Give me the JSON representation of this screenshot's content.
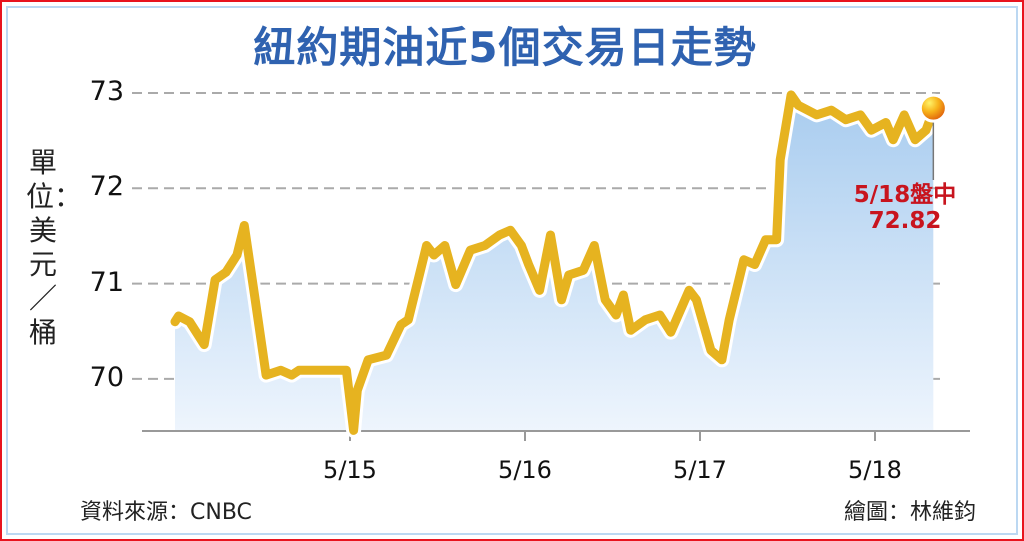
{
  "chart_data": {
    "type": "area",
    "title": "紐約期油近5個交易日走勢",
    "ylabel": "單位：美元／桶",
    "xlabel": "",
    "ylim": [
      69.4,
      73
    ],
    "yticks": [
      "73",
      "72",
      "71",
      "70"
    ],
    "ytick_values": [
      73,
      72,
      71,
      70
    ],
    "xticks": [
      "5/15",
      "5/16",
      "5/17",
      "5/18"
    ],
    "grid": true,
    "colors": {
      "line": "#e6b320",
      "fill_top": "#a8ccef",
      "fill_bottom": "#eef5fd",
      "title": "#2f62b0",
      "annotation": "#c8141e",
      "marker": "#f29a12"
    },
    "annotation": {
      "label": "5/18盤中",
      "value": "72.82"
    },
    "points": [
      [
        "5/14 00:00",
        70.6
      ],
      [
        "5/14 00:30",
        70.66
      ],
      [
        "5/14 02:00",
        70.6
      ],
      [
        "5/14 04:00",
        70.36
      ],
      [
        "5/14 05:30",
        71.04
      ],
      [
        "5/14 07:00",
        71.12
      ],
      [
        "5/14 08:30",
        71.3
      ],
      [
        "5/14 09:30",
        71.61
      ],
      [
        "5/14 11:00",
        70.83
      ],
      [
        "5/14 12:30",
        70.04
      ],
      [
        "5/14 14:30",
        70.09
      ],
      [
        "5/14 16:00",
        70.04
      ],
      [
        "5/14 17:00",
        70.09
      ],
      [
        "5/14 23:30",
        70.09
      ],
      [
        "5/15 00:30",
        69.46
      ],
      [
        "5/15 01:00",
        69.88
      ],
      [
        "5/15 02:30",
        70.2
      ],
      [
        "5/15 05:00",
        70.25
      ],
      [
        "5/15 07:00",
        70.57
      ],
      [
        "5/15 08:00",
        70.62
      ],
      [
        "5/15 10:30",
        71.4
      ],
      [
        "5/15 11:30",
        71.3
      ],
      [
        "5/15 13:00",
        71.4
      ],
      [
        "5/15 14:30",
        70.99
      ],
      [
        "5/15 16:30",
        71.35
      ],
      [
        "5/15 18:30",
        71.4
      ],
      [
        "5/15 20:30",
        71.51
      ],
      [
        "5/15 22:00",
        71.56
      ],
      [
        "5/15 23:30",
        71.4
      ],
      [
        "5/16 00:30",
        71.2
      ],
      [
        "5/16 02:00",
        70.93
      ],
      [
        "5/16 03:30",
        71.51
      ],
      [
        "5/16 05:00",
        70.83
      ],
      [
        "5/16 06:00",
        71.09
      ],
      [
        "5/16 08:00",
        71.14
      ],
      [
        "5/16 09:30",
        71.4
      ],
      [
        "5/16 11:00",
        70.83
      ],
      [
        "5/16 12:30",
        70.67
      ],
      [
        "5/16 13:30",
        70.88
      ],
      [
        "5/16 14:30",
        70.51
      ],
      [
        "5/16 16:30",
        70.62
      ],
      [
        "5/16 18:30",
        70.67
      ],
      [
        "5/16 20:00",
        70.49
      ],
      [
        "5/16 22:30",
        70.93
      ],
      [
        "5/16 23:30",
        70.83
      ],
      [
        "5/17 01:30",
        70.3
      ],
      [
        "5/17 03:00",
        70.2
      ],
      [
        "5/17 04:00",
        70.62
      ],
      [
        "5/17 06:00",
        71.25
      ],
      [
        "5/17 07:30",
        71.2
      ],
      [
        "5/17 09:00",
        71.46
      ],
      [
        "5/17 10:30",
        71.46
      ],
      [
        "5/17 11:00",
        72.3
      ],
      [
        "5/17 12:30",
        72.98
      ],
      [
        "5/17 13:30",
        72.87
      ],
      [
        "5/17 16:00",
        72.77
      ],
      [
        "5/17 18:00",
        72.82
      ],
      [
        "5/17 20:00",
        72.72
      ],
      [
        "5/17 22:00",
        72.77
      ],
      [
        "5/17 23:30",
        72.61
      ],
      [
        "5/18 01:30",
        72.69
      ],
      [
        "5/18 02:30",
        72.51
      ],
      [
        "5/18 04:00",
        72.77
      ],
      [
        "5/18 05:30",
        72.51
      ],
      [
        "5/18 07:00",
        72.61
      ],
      [
        "5/18 08:00",
        72.82
      ]
    ]
  },
  "footer": {
    "source": "資料來源：CNBC",
    "credit": "繪圖：林維鈞"
  }
}
